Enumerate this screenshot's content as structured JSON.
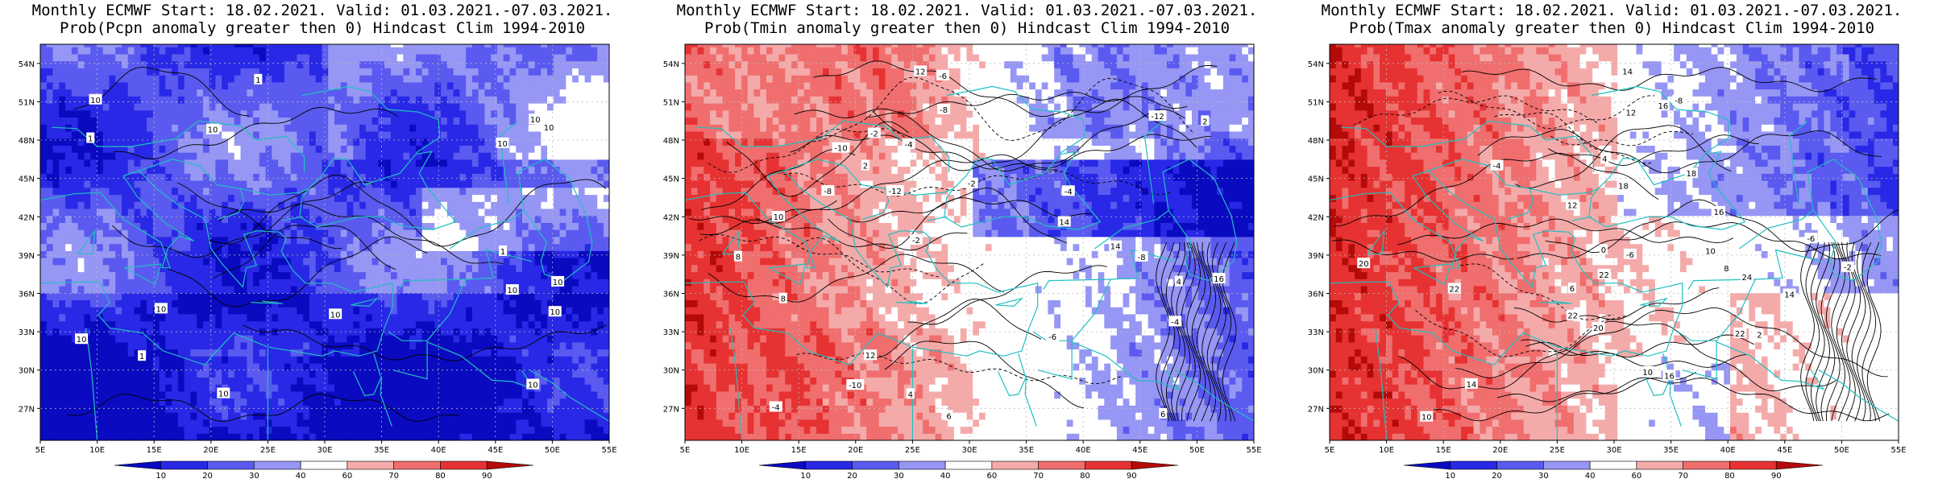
{
  "panels": [
    {
      "title_line1": "Monthly ECMWF Start: 18.02.2021. Valid: 01.03.2021.-07.03.2021.",
      "title_line2": "Prob(Pcpn anomaly greater then 0) Hindcast Clim 1994-2010",
      "variable": "precipitation",
      "contour_labels": [
        "10",
        "10",
        "10",
        "10",
        "10",
        "10",
        "10",
        "10",
        "10",
        "10",
        "10",
        "10",
        "1",
        "1",
        "1",
        "1",
        "10"
      ]
    },
    {
      "title_line1": "Monthly ECMWF Start: 18.02.2021. Valid: 01.03.2021.-07.03.2021.",
      "title_line2": "Prob(Tmin anomaly greater then 0) Hindcast Clim 1994-2010",
      "variable": "tmin",
      "contour_labels": [
        "-12",
        "-10",
        "-8",
        "-2",
        "-2",
        "-4",
        "-2",
        "-4",
        "-6",
        "-8",
        "-10",
        "-12",
        "-4",
        "-6",
        "-8",
        "-4",
        "2",
        "4",
        "6",
        "8",
        "12",
        "14",
        "12",
        "14",
        "16",
        "10",
        "8",
        "4",
        "2",
        "6"
      ]
    },
    {
      "title_line1": "Monthly ECMWF Start: 18.02.2021. Valid: 01.03.2021.-07.03.2021.",
      "title_line2": "Prob(Tmax anomaly greater then 0) Hindcast Clim 1994-2010",
      "variable": "tmax",
      "contour_labels": [
        "-6",
        "-8",
        "-6",
        "-4",
        "-2",
        "0",
        "2",
        "4",
        "6",
        "8",
        "10",
        "10",
        "12",
        "14",
        "16",
        "14",
        "16",
        "18",
        "20",
        "22",
        "24",
        "22",
        "20",
        "18",
        "16",
        "14",
        "12",
        "10",
        "22",
        "22"
      ]
    }
  ],
  "lat_labels": [
    "54N",
    "51N",
    "48N",
    "45N",
    "42N",
    "39N",
    "36N",
    "33N",
    "30N",
    "27N"
  ],
  "lon_labels": [
    "5E",
    "10E",
    "15E",
    "20E",
    "25E",
    "30E",
    "35E",
    "40E",
    "45E",
    "50E",
    "55E"
  ],
  "colorbar_labels": [
    "10",
    "20",
    "30",
    "40",
    "60",
    "70",
    "80",
    "90"
  ],
  "colors": {
    "bins": [
      "#0a0ac0",
      "#2828e6",
      "#5a5af0",
      "#9696f5",
      "#ffffff",
      "#f5aaaa",
      "#f06e6e",
      "#e63232",
      "#b40a0a"
    ],
    "coast": "#20c0c0",
    "contour": "#000000"
  }
}
